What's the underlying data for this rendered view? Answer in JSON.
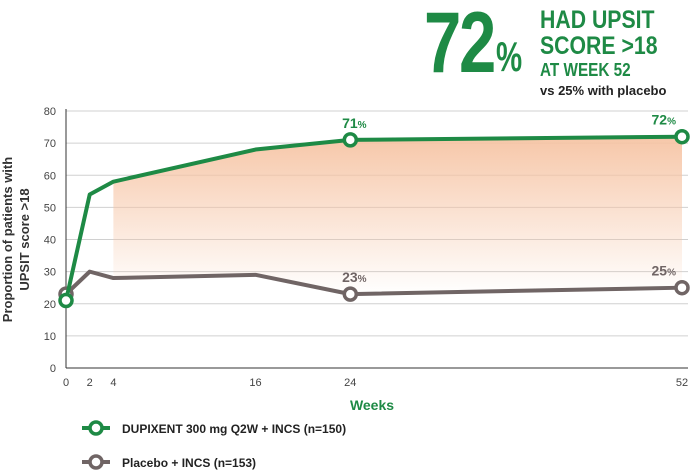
{
  "headline": {
    "value": "72",
    "percent_sign": "%",
    "line1": "HAD UPSIT",
    "line2": "SCORE >18",
    "line3": "AT WEEK 52",
    "comparison": "vs 25% with placebo"
  },
  "colors": {
    "dupixent": "#1e8a45",
    "placebo": "#706565",
    "fill_top": "#f6c4a4",
    "axis_text": "#444444",
    "grid": "#d0d0d0"
  },
  "chart_data": {
    "type": "line",
    "xlabel": "Weeks",
    "ylabel_line1": "Proportion of patients with",
    "ylabel_line2": "UPSIT score >18",
    "xlim": [
      0,
      52
    ],
    "ylim": [
      0,
      80
    ],
    "x_ticks": [
      0,
      2,
      4,
      16,
      24,
      52
    ],
    "y_ticks": [
      0,
      10,
      20,
      30,
      40,
      50,
      60,
      70,
      80
    ],
    "grid": true,
    "legend_position": "bottom-left",
    "series": [
      {
        "name": "DUPIXENT 300 mg Q2W + INCS (n=150)",
        "x": [
          0,
          2,
          4,
          16,
          24,
          52
        ],
        "y": [
          21,
          54,
          58,
          68,
          71,
          72
        ],
        "markers": [
          0,
          24,
          52
        ],
        "labels": [
          {
            "x": 24,
            "value": "71",
            "unit": "%"
          },
          {
            "x": 52,
            "value": "72",
            "unit": "%"
          }
        ]
      },
      {
        "name": "Placebo + INCS (n=153)",
        "x": [
          0,
          2,
          4,
          16,
          24,
          52
        ],
        "y": [
          23,
          30,
          28,
          29,
          23,
          25
        ],
        "markers": [
          0,
          24,
          52
        ],
        "labels": [
          {
            "x": 24,
            "value": "23",
            "unit": "%"
          },
          {
            "x": 52,
            "value": "25",
            "unit": "%"
          }
        ]
      }
    ]
  }
}
